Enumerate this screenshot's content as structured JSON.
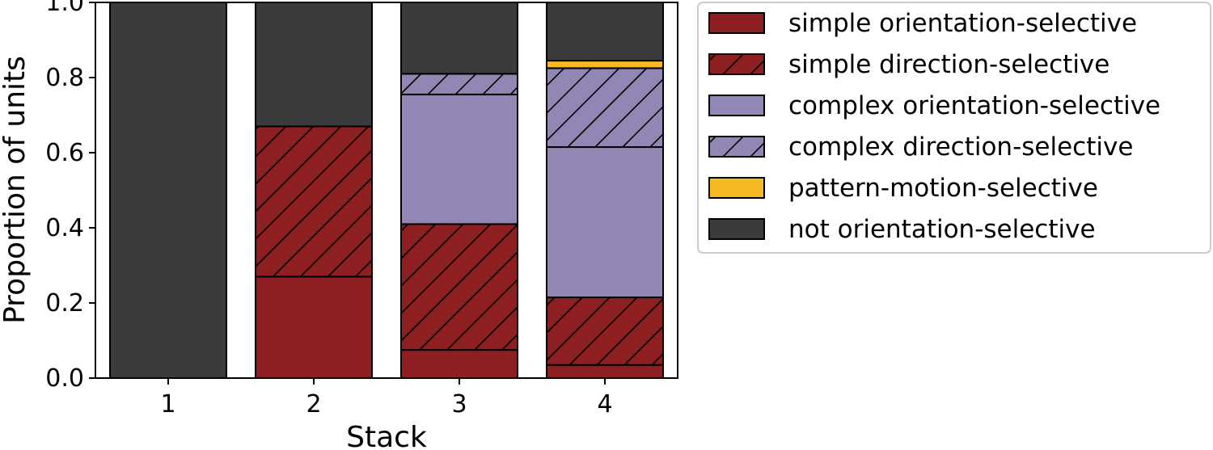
{
  "chart_data": {
    "type": "bar",
    "stacked": true,
    "categories": [
      "1",
      "2",
      "3",
      "4"
    ],
    "xlabel": "Stack",
    "ylabel": "Proportion of units",
    "ylim": [
      0,
      1.0
    ],
    "yticks": [
      "0.0",
      "0.2",
      "0.4",
      "0.6",
      "0.8",
      "1.0"
    ],
    "grid": false,
    "legend_position": "outside-right-top",
    "series": [
      {
        "name": "simple orientation-selective",
        "color": "#8e1f21",
        "hatch": false,
        "values": [
          0.0,
          0.27,
          0.075,
          0.035
        ]
      },
      {
        "name": "simple direction-selective",
        "color": "#8e1f21",
        "hatch": true,
        "values": [
          0.0,
          0.4,
          0.335,
          0.18
        ]
      },
      {
        "name": "complex orientation-selective",
        "color": "#9287b4",
        "hatch": false,
        "values": [
          0.0,
          0.0,
          0.345,
          0.4
        ]
      },
      {
        "name": "complex direction-selective",
        "color": "#9287b4",
        "hatch": true,
        "values": [
          0.0,
          0.0,
          0.055,
          0.21
        ]
      },
      {
        "name": "pattern-motion-selective",
        "color": "#f5b922",
        "hatch": false,
        "values": [
          0.0,
          0.0,
          0.0,
          0.02
        ]
      },
      {
        "name": "not orientation-selective",
        "color": "#3b3a3d",
        "hatch": false,
        "values": [
          1.0,
          0.33,
          0.19,
          0.155
        ]
      }
    ]
  }
}
